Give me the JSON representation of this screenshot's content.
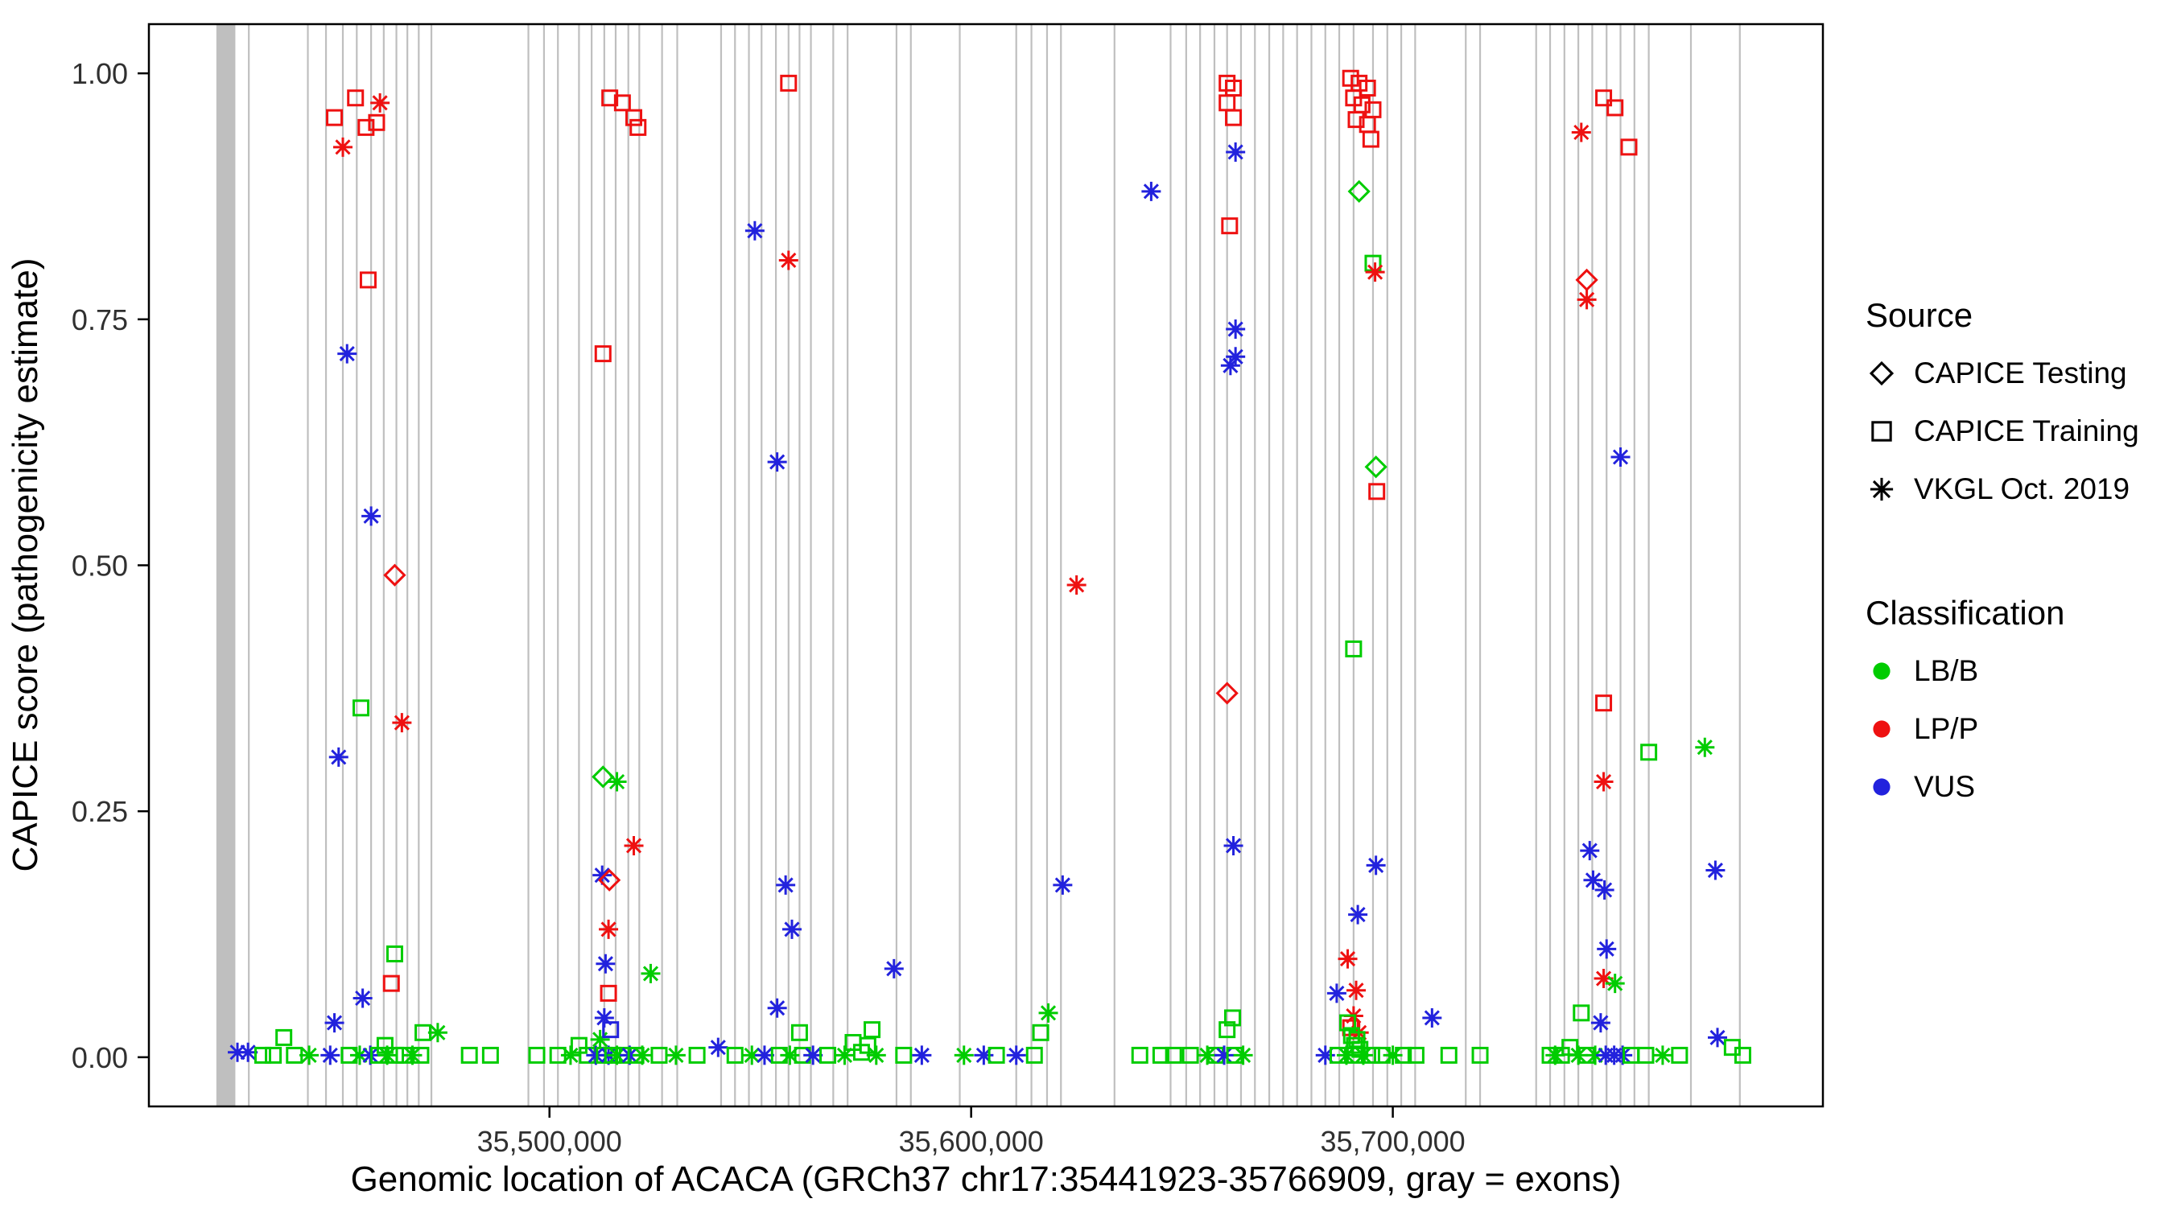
{
  "figure": {
    "background": "#ffffff",
    "panel_border_color": "#000000",
    "tick_label_color": "#303030"
  },
  "chart_data": {
    "type": "scatter",
    "title": "",
    "xlabel": "Genomic location of ACACA (GRCh37 chr17:35441923-35766909, gray = exons)",
    "ylabel": "CAPICE score (pathogenicity estimate)",
    "xlim": [
      35405000,
      35802000
    ],
    "ylim": [
      -0.05,
      1.05
    ],
    "grid": "off",
    "legend_position": "right",
    "x_ticks": [
      {
        "value": 35500000,
        "label": "35,500,000"
      },
      {
        "value": 35600000,
        "label": "35,600,000"
      },
      {
        "value": 35700000,
        "label": "35,700,000"
      }
    ],
    "y_ticks": [
      {
        "value": 0.0,
        "label": "0.00"
      },
      {
        "value": 0.25,
        "label": "0.25"
      },
      {
        "value": 0.5,
        "label": "0.50"
      },
      {
        "value": 0.75,
        "label": "0.75"
      },
      {
        "value": 1.0,
        "label": "1.00"
      }
    ],
    "legend": {
      "source": {
        "title": "Source",
        "items": [
          {
            "label": "CAPICE Testing",
            "marker": "diamond"
          },
          {
            "label": "CAPICE Training",
            "marker": "square"
          },
          {
            "label": "VKGL Oct. 2019",
            "marker": "asterisk"
          }
        ]
      },
      "classification": {
        "title": "Classification",
        "items": [
          {
            "label": "LB/B",
            "color": "#00CC00"
          },
          {
            "label": "LP/P",
            "color": "#EE1111"
          },
          {
            "label": "VUS",
            "color": "#2222DD"
          }
        ]
      }
    },
    "sources": {
      "T": {
        "name": "CAPICE Testing",
        "marker": "diamond"
      },
      "R": {
        "name": "CAPICE Training",
        "marker": "square"
      },
      "V": {
        "name": "VKGL Oct. 2019",
        "marker": "asterisk"
      }
    },
    "classes": {
      "B": {
        "name": "LB/B",
        "color": "#00CC00"
      },
      "P": {
        "name": "LP/P",
        "color": "#EE1111"
      },
      "U": {
        "name": "VUS",
        "color": "#2222DD"
      }
    },
    "exons": {
      "color": "#BFBFBF",
      "note": "gray = exons",
      "thick_region": {
        "start": 35421000,
        "end": 35425500
      },
      "positions": [
        35428700,
        35442700,
        35447000,
        35451000,
        35454300,
        35457700,
        35460700,
        35463700,
        35466300,
        35469000,
        35472000,
        35495000,
        35498700,
        35502000,
        35507000,
        35510000,
        35513000,
        35515700,
        35518700,
        35521300,
        35526700,
        35530300,
        35540700,
        35544000,
        35547300,
        35550300,
        35553700,
        35556700,
        35559300,
        35562000,
        35567300,
        35570700,
        35582300,
        35585700,
        35597300,
        35610700,
        35614300,
        35618000,
        35621300,
        35634000,
        35647300,
        35651000,
        35654300,
        35657700,
        35660700,
        35664000,
        35667300,
        35670700,
        35674000,
        35677300,
        35680700,
        35684000,
        35687300,
        35690700,
        35695300,
        35698700,
        35702000,
        35705300,
        35717300,
        35720700,
        35734000,
        35737300,
        35740700,
        35744000,
        35747300,
        35750700,
        35754000,
        35757300,
        35760700,
        35770700,
        35782300
      ]
    },
    "points_format": [
      "genomic_position",
      "capice_score",
      "source_key",
      "classification_key"
    ],
    "points": [
      [
        35426000,
        0.005,
        "V",
        "U"
      ],
      [
        35428500,
        0.005,
        "V",
        "U"
      ],
      [
        35432000,
        0.002,
        "R",
        "B"
      ],
      [
        35434500,
        0.002,
        "R",
        "B"
      ],
      [
        35437000,
        0.02,
        "R",
        "B"
      ],
      [
        35439500,
        0.002,
        "R",
        "B"
      ],
      [
        35443000,
        0.002,
        "V",
        "B"
      ],
      [
        35449000,
        0.955,
        "R",
        "P"
      ],
      [
        35451000,
        0.925,
        "V",
        "P"
      ],
      [
        35454000,
        0.975,
        "R",
        "P"
      ],
      [
        35456500,
        0.945,
        "R",
        "P"
      ],
      [
        35459000,
        0.95,
        "R",
        "P"
      ],
      [
        35459800,
        0.97,
        "V",
        "P"
      ],
      [
        35457000,
        0.79,
        "R",
        "P"
      ],
      [
        35452000,
        0.715,
        "V",
        "U"
      ],
      [
        35457700,
        0.55,
        "V",
        "U"
      ],
      [
        35463300,
        0.49,
        "T",
        "P"
      ],
      [
        35455300,
        0.355,
        "R",
        "B"
      ],
      [
        35465000,
        0.34,
        "V",
        "P"
      ],
      [
        35450000,
        0.305,
        "V",
        "U"
      ],
      [
        35463300,
        0.105,
        "R",
        "B"
      ],
      [
        35462500,
        0.075,
        "R",
        "P"
      ],
      [
        35455700,
        0.06,
        "V",
        "U"
      ],
      [
        35449000,
        0.035,
        "V",
        "U"
      ],
      [
        35470000,
        0.025,
        "R",
        "B"
      ],
      [
        35473500,
        0.025,
        "V",
        "B"
      ],
      [
        35448000,
        0.002,
        "V",
        "U"
      ],
      [
        35452500,
        0.002,
        "R",
        "B"
      ],
      [
        35455000,
        0.002,
        "V",
        "B"
      ],
      [
        35457500,
        0.002,
        "V",
        "U"
      ],
      [
        35459500,
        0.002,
        "R",
        "B"
      ],
      [
        35461000,
        0.012,
        "R",
        "B"
      ],
      [
        35461500,
        0.002,
        "V",
        "B"
      ],
      [
        35463500,
        0.002,
        "R",
        "B"
      ],
      [
        35465500,
        0.002,
        "R",
        "B"
      ],
      [
        35467500,
        0.002,
        "V",
        "B"
      ],
      [
        35469500,
        0.002,
        "R",
        "B"
      ],
      [
        35481000,
        0.002,
        "R",
        "B"
      ],
      [
        35486000,
        0.002,
        "R",
        "B"
      ],
      [
        35497000,
        0.002,
        "R",
        "B"
      ],
      [
        35502000,
        0.002,
        "R",
        "B"
      ],
      [
        35505000,
        0.002,
        "V",
        "B"
      ],
      [
        35507000,
        0.012,
        "R",
        "B"
      ],
      [
        35509000,
        0.002,
        "R",
        "B"
      ],
      [
        35511000,
        0.002,
        "V",
        "U"
      ],
      [
        35512000,
        0.018,
        "V",
        "B"
      ],
      [
        35513000,
        0.002,
        "R",
        "B"
      ],
      [
        35514000,
        0.002,
        "V",
        "U"
      ],
      [
        35515000,
        0.002,
        "R",
        "B"
      ],
      [
        35516000,
        0.002,
        "V",
        "B"
      ],
      [
        35517500,
        0.002,
        "R",
        "B"
      ],
      [
        35519000,
        0.002,
        "V",
        "U"
      ],
      [
        35520500,
        0.002,
        "R",
        "B"
      ],
      [
        35522000,
        0.002,
        "V",
        "B"
      ],
      [
        35526000,
        0.002,
        "R",
        "B"
      ],
      [
        35530000,
        0.002,
        "V",
        "B"
      ],
      [
        35535000,
        0.002,
        "R",
        "B"
      ],
      [
        35514300,
        0.975,
        "R",
        "P"
      ],
      [
        35517300,
        0.97,
        "R",
        "P"
      ],
      [
        35520000,
        0.955,
        "R",
        "P"
      ],
      [
        35521000,
        0.945,
        "R",
        "P"
      ],
      [
        35512700,
        0.715,
        "R",
        "P"
      ],
      [
        35512700,
        0.285,
        "T",
        "B"
      ],
      [
        35516000,
        0.28,
        "V",
        "B"
      ],
      [
        35520000,
        0.215,
        "V",
        "P"
      ],
      [
        35512500,
        0.185,
        "V",
        "U"
      ],
      [
        35514200,
        0.18,
        "T",
        "P"
      ],
      [
        35514000,
        0.13,
        "V",
        "P"
      ],
      [
        35513300,
        0.095,
        "V",
        "U"
      ],
      [
        35524000,
        0.085,
        "V",
        "B"
      ],
      [
        35514000,
        0.065,
        "R",
        "P"
      ],
      [
        35513000,
        0.04,
        "V",
        "U"
      ],
      [
        35514500,
        0.028,
        "R",
        "U"
      ],
      [
        35556700,
        0.99,
        "R",
        "P"
      ],
      [
        35548700,
        0.84,
        "V",
        "U"
      ],
      [
        35556700,
        0.81,
        "V",
        "P"
      ],
      [
        35554000,
        0.605,
        "V",
        "U"
      ],
      [
        35556000,
        0.175,
        "V",
        "U"
      ],
      [
        35557500,
        0.13,
        "V",
        "U"
      ],
      [
        35554000,
        0.05,
        "V",
        "U"
      ],
      [
        35559300,
        0.025,
        "R",
        "B"
      ],
      [
        35540000,
        0.01,
        "V",
        "U"
      ],
      [
        35544000,
        0.002,
        "R",
        "B"
      ],
      [
        35548000,
        0.002,
        "V",
        "B"
      ],
      [
        35551000,
        0.002,
        "V",
        "U"
      ],
      [
        35554500,
        0.002,
        "R",
        "B"
      ],
      [
        35557000,
        0.002,
        "V",
        "B"
      ],
      [
        35560000,
        0.002,
        "R",
        "B"
      ],
      [
        35562500,
        0.002,
        "V",
        "U"
      ],
      [
        35566000,
        0.002,
        "R",
        "B"
      ],
      [
        35570000,
        0.002,
        "V",
        "B"
      ],
      [
        35572000,
        0.015,
        "R",
        "B"
      ],
      [
        35574000,
        0.005,
        "R",
        "B"
      ],
      [
        35575500,
        0.012,
        "R",
        "B"
      ],
      [
        35576500,
        0.028,
        "R",
        "B"
      ],
      [
        35577500,
        0.002,
        "V",
        "B"
      ],
      [
        35584000,
        0.002,
        "R",
        "B"
      ],
      [
        35581700,
        0.09,
        "V",
        "U"
      ],
      [
        35588300,
        0.002,
        "V",
        "U"
      ],
      [
        35598300,
        0.002,
        "V",
        "B"
      ],
      [
        35603000,
        0.002,
        "V",
        "U"
      ],
      [
        35606000,
        0.002,
        "R",
        "B"
      ],
      [
        35610700,
        0.002,
        "V",
        "U"
      ],
      [
        35615000,
        0.002,
        "R",
        "B"
      ],
      [
        35616500,
        0.025,
        "R",
        "B"
      ],
      [
        35618300,
        0.045,
        "V",
        "B"
      ],
      [
        35621700,
        0.175,
        "V",
        "U"
      ],
      [
        35625000,
        0.48,
        "V",
        "P"
      ],
      [
        35642700,
        0.88,
        "V",
        "U"
      ],
      [
        35640000,
        0.002,
        "R",
        "B"
      ],
      [
        35645000,
        0.002,
        "R",
        "B"
      ],
      [
        35648000,
        0.002,
        "R",
        "B"
      ],
      [
        35652000,
        0.002,
        "R",
        "B"
      ],
      [
        35656000,
        0.002,
        "V",
        "B"
      ],
      [
        35658000,
        0.002,
        "R",
        "B"
      ],
      [
        35660700,
        0.99,
        "R",
        "P"
      ],
      [
        35662200,
        0.985,
        "R",
        "P"
      ],
      [
        35660700,
        0.97,
        "R",
        "P"
      ],
      [
        35662200,
        0.955,
        "R",
        "P"
      ],
      [
        35662700,
        0.92,
        "V",
        "U"
      ],
      [
        35661300,
        0.845,
        "R",
        "P"
      ],
      [
        35662700,
        0.74,
        "V",
        "U"
      ],
      [
        35662700,
        0.712,
        "V",
        "U"
      ],
      [
        35661500,
        0.703,
        "V",
        "U"
      ],
      [
        35660700,
        0.37,
        "T",
        "P"
      ],
      [
        35662200,
        0.215,
        "V",
        "U"
      ],
      [
        35662000,
        0.04,
        "R",
        "B"
      ],
      [
        35660700,
        0.028,
        "R",
        "B"
      ],
      [
        35660000,
        0.002,
        "V",
        "U"
      ],
      [
        35662500,
        0.002,
        "R",
        "B"
      ],
      [
        35664500,
        0.002,
        "V",
        "B"
      ],
      [
        35690000,
        0.995,
        "R",
        "P"
      ],
      [
        35692000,
        0.99,
        "R",
        "P"
      ],
      [
        35694000,
        0.985,
        "R",
        "P"
      ],
      [
        35690700,
        0.975,
        "R",
        "P"
      ],
      [
        35692700,
        0.968,
        "R",
        "P"
      ],
      [
        35695300,
        0.963,
        "R",
        "P"
      ],
      [
        35691300,
        0.953,
        "R",
        "P"
      ],
      [
        35694000,
        0.948,
        "R",
        "P"
      ],
      [
        35694800,
        0.933,
        "R",
        "P"
      ],
      [
        35692000,
        0.88,
        "T",
        "B"
      ],
      [
        35695300,
        0.807,
        "R",
        "B"
      ],
      [
        35695800,
        0.798,
        "V",
        "P"
      ],
      [
        35696000,
        0.6,
        "T",
        "B"
      ],
      [
        35696200,
        0.575,
        "R",
        "P"
      ],
      [
        35690700,
        0.415,
        "R",
        "B"
      ],
      [
        35696000,
        0.195,
        "V",
        "U"
      ],
      [
        35691700,
        0.145,
        "V",
        "U"
      ],
      [
        35689300,
        0.1,
        "V",
        "P"
      ],
      [
        35686700,
        0.065,
        "V",
        "U"
      ],
      [
        35691300,
        0.068,
        "V",
        "P"
      ],
      [
        35690700,
        0.042,
        "V",
        "P"
      ],
      [
        35690000,
        0.03,
        "R",
        "P"
      ],
      [
        35692000,
        0.025,
        "V",
        "P"
      ],
      [
        35689300,
        0.035,
        "R",
        "B"
      ],
      [
        35690200,
        0.022,
        "R",
        "B"
      ],
      [
        35690900,
        0.012,
        "R",
        "B"
      ],
      [
        35691500,
        0.018,
        "R",
        "B"
      ],
      [
        35692200,
        0.008,
        "R",
        "B"
      ],
      [
        35684000,
        0.002,
        "V",
        "U"
      ],
      [
        35687000,
        0.002,
        "R",
        "B"
      ],
      [
        35689000,
        0.002,
        "V",
        "B"
      ],
      [
        35691000,
        0.002,
        "R",
        "B"
      ],
      [
        35693000,
        0.002,
        "V",
        "B"
      ],
      [
        35695000,
        0.002,
        "R",
        "B"
      ],
      [
        35697500,
        0.002,
        "R",
        "B"
      ],
      [
        35700000,
        0.002,
        "V",
        "B"
      ],
      [
        35702500,
        0.002,
        "R",
        "B"
      ],
      [
        35705500,
        0.002,
        "R",
        "B"
      ],
      [
        35709300,
        0.04,
        "V",
        "U"
      ],
      [
        35713300,
        0.002,
        "R",
        "B"
      ],
      [
        35720700,
        0.002,
        "R",
        "B"
      ],
      [
        35744700,
        0.94,
        "V",
        "P"
      ],
      [
        35750000,
        0.975,
        "R",
        "P"
      ],
      [
        35752700,
        0.965,
        "R",
        "P"
      ],
      [
        35756000,
        0.925,
        "R",
        "P"
      ],
      [
        35746000,
        0.79,
        "T",
        "P"
      ],
      [
        35746000,
        0.77,
        "V",
        "P"
      ],
      [
        35754000,
        0.61,
        "V",
        "U"
      ],
      [
        35750000,
        0.36,
        "R",
        "P"
      ],
      [
        35750000,
        0.28,
        "V",
        "P"
      ],
      [
        35746700,
        0.21,
        "V",
        "U"
      ],
      [
        35747500,
        0.18,
        "V",
        "U"
      ],
      [
        35750200,
        0.17,
        "V",
        "U"
      ],
      [
        35750700,
        0.11,
        "V",
        "U"
      ],
      [
        35750000,
        0.08,
        "V",
        "P"
      ],
      [
        35752700,
        0.075,
        "V",
        "B"
      ],
      [
        35744700,
        0.045,
        "R",
        "B"
      ],
      [
        35749300,
        0.035,
        "V",
        "U"
      ],
      [
        35760700,
        0.31,
        "R",
        "B"
      ],
      [
        35774000,
        0.315,
        "V",
        "B"
      ],
      [
        35776500,
        0.19,
        "V",
        "U"
      ],
      [
        35737300,
        0.002,
        "R",
        "B"
      ],
      [
        35738500,
        0.002,
        "V",
        "B"
      ],
      [
        35740000,
        0.002,
        "R",
        "B"
      ],
      [
        35742000,
        0.01,
        "R",
        "B"
      ],
      [
        35744000,
        0.002,
        "V",
        "B"
      ],
      [
        35746000,
        0.002,
        "R",
        "B"
      ],
      [
        35748000,
        0.002,
        "V",
        "B"
      ],
      [
        35750500,
        0.002,
        "V",
        "U"
      ],
      [
        35752500,
        0.002,
        "V",
        "U"
      ],
      [
        35754500,
        0.002,
        "V",
        "U"
      ],
      [
        35756500,
        0.002,
        "R",
        "B"
      ],
      [
        35760000,
        0.002,
        "R",
        "B"
      ],
      [
        35764000,
        0.002,
        "V",
        "B"
      ],
      [
        35768000,
        0.002,
        "R",
        "B"
      ],
      [
        35777000,
        0.02,
        "V",
        "U"
      ],
      [
        35780500,
        0.01,
        "R",
        "B"
      ],
      [
        35783000,
        0.002,
        "R",
        "B"
      ]
    ]
  }
}
